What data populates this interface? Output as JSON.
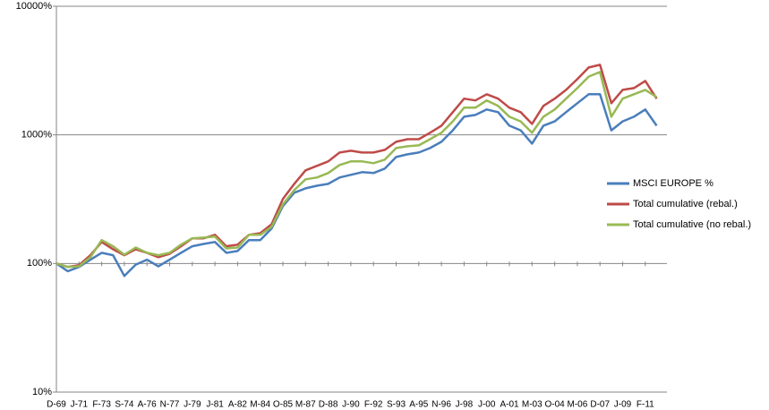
{
  "chart_data": {
    "type": "line",
    "log_scale": true,
    "grid": true,
    "legend": "right",
    "categories": [
      "D-69",
      null,
      "J-71",
      null,
      "F-73",
      null,
      "S-74",
      null,
      "A-76",
      null,
      "N-77",
      null,
      "J-79",
      null,
      "J-81",
      null,
      "A-82",
      null,
      "M-84",
      null,
      "O-85",
      null,
      "M-87",
      null,
      "D-88",
      null,
      "J-90",
      null,
      "F-92",
      null,
      "S-93",
      null,
      "A-95",
      null,
      "N-96",
      null,
      "J-98",
      null,
      "J-00",
      null,
      "A-01",
      null,
      "M-03",
      null,
      "O-04",
      null,
      "M-06",
      null,
      "D-07",
      null,
      "J-09",
      null,
      "F-11",
      null
    ],
    "ylim": [
      10,
      10000
    ],
    "yticks": [
      {
        "value": 10,
        "label": "10%"
      },
      {
        "value": 100,
        "label": "100%"
      },
      {
        "value": 1000,
        "label": "1000%"
      },
      {
        "value": 10000,
        "label": "10000%"
      }
    ],
    "series": [
      {
        "name": "MSCI EUROPE %",
        "color": "#4a7ebb",
        "values": [
          100,
          87,
          94,
          107,
          121,
          116,
          80,
          98,
          107,
          95,
          107,
          121,
          136,
          142,
          147,
          121,
          125,
          152,
          152,
          187,
          279,
          355,
          384,
          402,
          416,
          466,
          489,
          513,
          505,
          547,
          673,
          706,
          729,
          790,
          883,
          1085,
          1384,
          1430,
          1575,
          1501,
          1179,
          1085,
          855,
          1179,
          1274,
          1501,
          1764,
          2069,
          2069,
          1085,
          1274,
          1384,
          1575,
          1179
        ]
      },
      {
        "name": "Total cumulative (rebal.)",
        "color": "#be4b48",
        "values": [
          100,
          94,
          97,
          116,
          147,
          129,
          116,
          129,
          121,
          112,
          119,
          136,
          157,
          157,
          167,
          136,
          140,
          167,
          172,
          202,
          317,
          416,
          530,
          574,
          622,
          729,
          753,
          729,
          729,
          765,
          883,
          926,
          926,
          1038,
          1179,
          1501,
          1913,
          1852,
          2069,
          1913,
          1626,
          1501,
          1217,
          1679,
          1913,
          2237,
          2713,
          3342,
          3506,
          1764,
          2237,
          2311,
          2628,
          1913
        ]
      },
      {
        "name": "Total cumulative (no rebal.)",
        "color": "#98b954",
        "values": [
          100,
          94,
          95,
          112,
          152,
          136,
          117,
          133,
          121,
          116,
          121,
          140,
          157,
          159,
          162,
          131,
          133,
          167,
          167,
          193,
          288,
          372,
          451,
          466,
          505,
          583,
          622,
          622,
          602,
          642,
          790,
          815,
          828,
          926,
          1038,
          1274,
          1626,
          1626,
          1852,
          1679,
          1384,
          1274,
          1038,
          1384,
          1575,
          1913,
          2311,
          2837,
          3084,
          1384,
          1913,
          2069,
          2237,
          1970
        ]
      }
    ]
  }
}
